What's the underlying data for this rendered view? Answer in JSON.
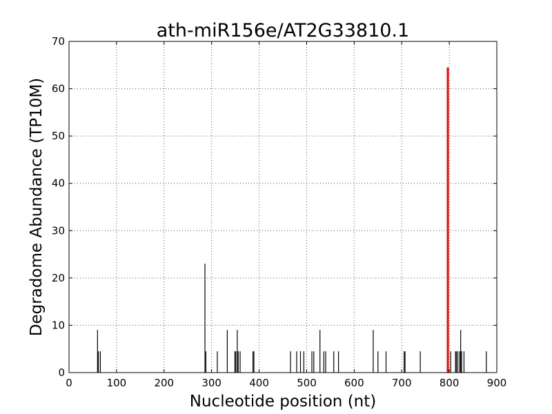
{
  "chart_data": {
    "type": "bar",
    "title": "ath-miR156e/AT2G33810.1",
    "xlabel": "Nucleotide position (nt)",
    "ylabel": "Degradome Abundance (TP10M)",
    "xlim": [
      0,
      900
    ],
    "ylim": [
      0,
      70
    ],
    "xticks": [
      0,
      100,
      200,
      300,
      400,
      500,
      600,
      700,
      800,
      900
    ],
    "yticks": [
      0,
      10,
      20,
      30,
      40,
      50,
      60,
      70
    ],
    "grid": true,
    "colors": {
      "series": "#000000",
      "highlight": "#ff0000",
      "grid": "#555555"
    },
    "series": [
      {
        "values": [
          {
            "x": 60,
            "y": 9
          },
          {
            "x": 62,
            "y": 4.5
          },
          {
            "x": 66,
            "y": 4.5
          },
          {
            "x": 286,
            "y": 23
          },
          {
            "x": 288,
            "y": 4.5
          },
          {
            "x": 312,
            "y": 4.5
          },
          {
            "x": 333,
            "y": 9
          },
          {
            "x": 349,
            "y": 4.5
          },
          {
            "x": 351,
            "y": 4.5
          },
          {
            "x": 354,
            "y": 9
          },
          {
            "x": 356,
            "y": 4.5
          },
          {
            "x": 360,
            "y": 4.5
          },
          {
            "x": 387,
            "y": 4.5
          },
          {
            "x": 389,
            "y": 4.5
          },
          {
            "x": 466,
            "y": 4.5
          },
          {
            "x": 479,
            "y": 4.5
          },
          {
            "x": 487,
            "y": 4.5
          },
          {
            "x": 494,
            "y": 4.5
          },
          {
            "x": 511,
            "y": 4.5
          },
          {
            "x": 515,
            "y": 4.5
          },
          {
            "x": 528,
            "y": 9
          },
          {
            "x": 536,
            "y": 4.5
          },
          {
            "x": 540,
            "y": 4.5
          },
          {
            "x": 557,
            "y": 4.5
          },
          {
            "x": 567,
            "y": 4.5
          },
          {
            "x": 640,
            "y": 9
          },
          {
            "x": 650,
            "y": 4.5
          },
          {
            "x": 667,
            "y": 4.5
          },
          {
            "x": 705,
            "y": 4.5
          },
          {
            "x": 707,
            "y": 4.5
          },
          {
            "x": 739,
            "y": 4.5
          },
          {
            "x": 803,
            "y": 4.5
          },
          {
            "x": 813,
            "y": 4.5
          },
          {
            "x": 815,
            "y": 4.5
          },
          {
            "x": 818,
            "y": 4.5
          },
          {
            "x": 822,
            "y": 4.5
          },
          {
            "x": 824,
            "y": 9
          },
          {
            "x": 826,
            "y": 4.5
          },
          {
            "x": 831,
            "y": 4.5
          },
          {
            "x": 878,
            "y": 4.5
          }
        ]
      }
    ],
    "highlight": {
      "x": 797,
      "y": 64.5
    }
  }
}
